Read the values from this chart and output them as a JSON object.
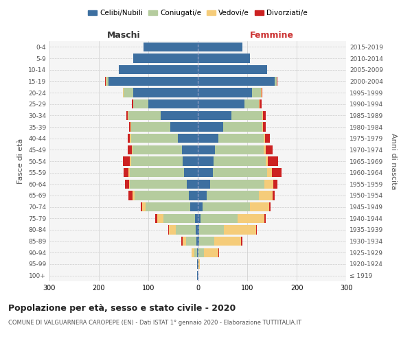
{
  "age_groups": [
    "100+",
    "95-99",
    "90-94",
    "85-89",
    "80-84",
    "75-79",
    "70-74",
    "65-69",
    "60-64",
    "55-59",
    "50-54",
    "45-49",
    "40-44",
    "35-39",
    "30-34",
    "25-29",
    "20-24",
    "15-19",
    "10-14",
    "5-9",
    "0-4"
  ],
  "birth_years": [
    "≤ 1919",
    "1920-1924",
    "1925-1929",
    "1930-1934",
    "1935-1939",
    "1940-1944",
    "1945-1949",
    "1950-1954",
    "1955-1959",
    "1960-1964",
    "1965-1969",
    "1970-1974",
    "1975-1979",
    "1980-1984",
    "1985-1989",
    "1990-1994",
    "1995-1999",
    "2000-2004",
    "2005-2009",
    "2010-2014",
    "2015-2019"
  ],
  "colors": {
    "celibi": "#3d6fa0",
    "coniugati": "#b5cc9e",
    "vedovi": "#f5cc7a",
    "divorziati": "#cc2222"
  },
  "males": {
    "celibi": [
      1,
      1,
      2,
      3,
      4,
      5,
      15,
      18,
      22,
      28,
      30,
      32,
      40,
      55,
      75,
      100,
      130,
      180,
      160,
      130,
      110
    ],
    "coniugati": [
      0,
      0,
      5,
      20,
      40,
      65,
      90,
      110,
      115,
      110,
      105,
      100,
      95,
      80,
      65,
      30,
      20,
      5,
      0,
      0,
      0
    ],
    "vedovi": [
      0,
      0,
      5,
      8,
      15,
      12,
      8,
      4,
      2,
      2,
      2,
      2,
      2,
      1,
      1,
      1,
      1,
      1,
      0,
      0,
      0
    ],
    "divorziati": [
      0,
      0,
      0,
      2,
      1,
      4,
      2,
      8,
      8,
      10,
      14,
      8,
      5,
      3,
      3,
      2,
      1,
      1,
      0,
      0,
      0
    ]
  },
  "females": {
    "celibi": [
      1,
      1,
      2,
      3,
      3,
      5,
      10,
      18,
      25,
      30,
      32,
      35,
      42,
      52,
      68,
      95,
      110,
      155,
      140,
      105,
      90
    ],
    "coniugati": [
      0,
      0,
      10,
      30,
      50,
      75,
      95,
      105,
      110,
      110,
      105,
      98,
      92,
      78,
      62,
      28,
      18,
      5,
      0,
      0,
      0
    ],
    "vedovi": [
      0,
      3,
      30,
      55,
      65,
      55,
      40,
      28,
      18,
      10,
      5,
      4,
      2,
      2,
      2,
      2,
      1,
      0,
      0,
      0,
      0
    ],
    "divorziati": [
      0,
      0,
      1,
      2,
      2,
      2,
      2,
      5,
      8,
      20,
      20,
      15,
      10,
      5,
      5,
      4,
      2,
      1,
      0,
      0,
      0
    ]
  },
  "title": "Popolazione per età, sesso e stato civile - 2020",
  "subtitle": "COMUNE DI VALGUARNERA CAROPEPE (EN) - Dati ISTAT 1° gennaio 2020 - Elaborazione TUTTITALIA.IT",
  "xlabel_left": "Maschi",
  "xlabel_right": "Femmine",
  "ylabel_left": "Fasce di età",
  "ylabel_right": "Anni di nascita",
  "xlim": 300,
  "legend_labels": [
    "Celibi/Nubili",
    "Coniugati/e",
    "Vedovi/e",
    "Divorziati/e"
  ],
  "bg_color": "#f5f5f5",
  "grid_color": "#cccccc"
}
